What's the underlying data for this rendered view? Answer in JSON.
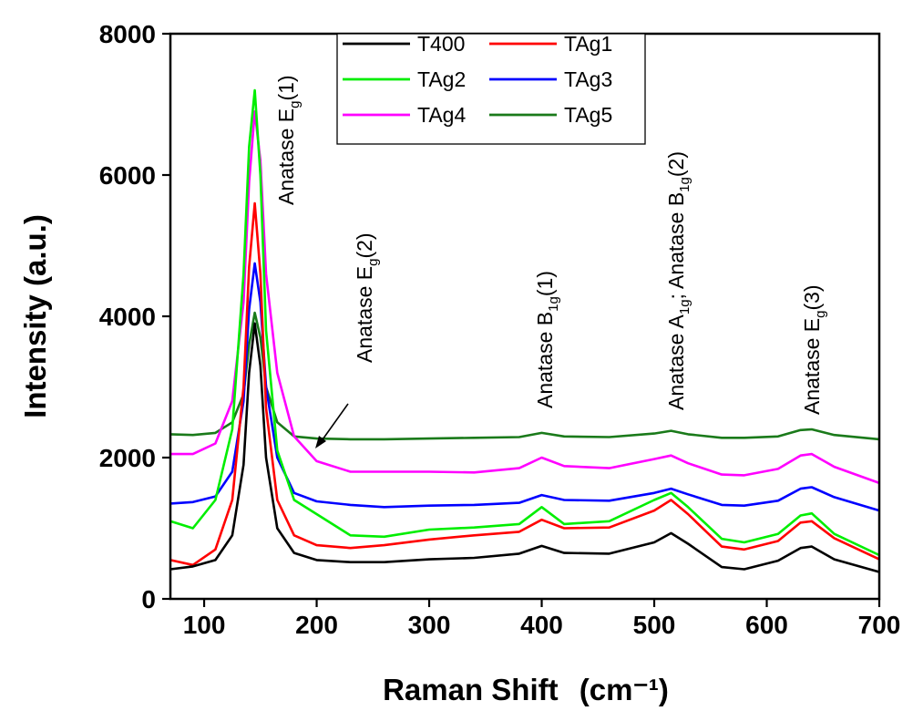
{
  "chart_data": {
    "type": "line",
    "title": "",
    "xlabel": "Raman Shift",
    "xunit": "(cm⁻¹)",
    "ylabel": "Intensity (a.u.)",
    "xlim": [
      70,
      700
    ],
    "ylim": [
      0,
      8000
    ],
    "xticks": [
      100,
      200,
      300,
      400,
      500,
      600,
      700
    ],
    "yticks": [
      0,
      2000,
      4000,
      6000,
      8000
    ],
    "grid": false,
    "legend_position": "top-center",
    "x": [
      70,
      90,
      110,
      125,
      135,
      140,
      145,
      150,
      155,
      165,
      180,
      200,
      230,
      260,
      300,
      340,
      380,
      400,
      420,
      460,
      500,
      515,
      530,
      560,
      580,
      610,
      630,
      640,
      660,
      700
    ],
    "series": [
      {
        "name": "T400",
        "color": "#000000",
        "values": [
          420,
          460,
          550,
          900,
          1900,
          3200,
          3900,
          3300,
          2000,
          1000,
          650,
          550,
          520,
          520,
          560,
          580,
          640,
          750,
          650,
          640,
          800,
          930,
          780,
          450,
          420,
          540,
          720,
          740,
          560,
          380
        ]
      },
      {
        "name": "TAg1",
        "color": "#ff0000",
        "values": [
          550,
          480,
          700,
          1400,
          3000,
          4700,
          5600,
          4600,
          2700,
          1400,
          900,
          760,
          720,
          760,
          840,
          900,
          950,
          1120,
          1000,
          1010,
          1250,
          1400,
          1200,
          740,
          700,
          820,
          1080,
          1100,
          860,
          560
        ]
      },
      {
        "name": "TAg2",
        "color": "#00ee00",
        "values": [
          1100,
          1000,
          1400,
          2400,
          4600,
          6400,
          7200,
          6000,
          3800,
          2100,
          1400,
          1200,
          900,
          880,
          980,
          1010,
          1060,
          1300,
          1060,
          1100,
          1400,
          1500,
          1300,
          850,
          800,
          920,
          1180,
          1210,
          920,
          620
        ]
      },
      {
        "name": "TAg3",
        "color": "#0000ff",
        "values": [
          1350,
          1370,
          1450,
          1800,
          2800,
          4100,
          4750,
          4200,
          3000,
          2000,
          1500,
          1380,
          1330,
          1300,
          1320,
          1330,
          1360,
          1470,
          1400,
          1390,
          1500,
          1560,
          1480,
          1330,
          1320,
          1390,
          1560,
          1580,
          1440,
          1250
        ]
      },
      {
        "name": "TAg4",
        "color": "#ff00ff",
        "values": [
          2050,
          2050,
          2200,
          2800,
          4200,
          5900,
          6900,
          6200,
          4600,
          3200,
          2300,
          1950,
          1800,
          1800,
          1800,
          1790,
          1850,
          2000,
          1880,
          1850,
          1980,
          2030,
          1920,
          1760,
          1750,
          1840,
          2030,
          2050,
          1870,
          1640
        ]
      },
      {
        "name": "TAg5",
        "color": "#1a7a1a",
        "values": [
          2330,
          2320,
          2350,
          2500,
          2900,
          3600,
          4050,
          3700,
          3000,
          2500,
          2300,
          2270,
          2260,
          2260,
          2270,
          2280,
          2290,
          2350,
          2300,
          2290,
          2340,
          2380,
          2330,
          2280,
          2280,
          2300,
          2390,
          2400,
          2320,
          2260
        ]
      }
    ],
    "annotations": [
      {
        "id": "eg1",
        "base": "Anatase E",
        "sub": "g",
        "tail": "(1)"
      },
      {
        "id": "eg2",
        "base": "Anatase E",
        "sub": "g",
        "tail": "(2)"
      },
      {
        "id": "b1g1",
        "base": "Anatase B",
        "sub": "1g",
        "tail": "(1)"
      },
      {
        "id": "a1g",
        "base": "Anatase A",
        "sub": "1g",
        "mid": "; Anatase B",
        "sub2": "1g",
        "tail": "(2)"
      },
      {
        "id": "eg3",
        "base": "Anatase E",
        "sub": "g",
        "tail": "(3)"
      }
    ]
  }
}
